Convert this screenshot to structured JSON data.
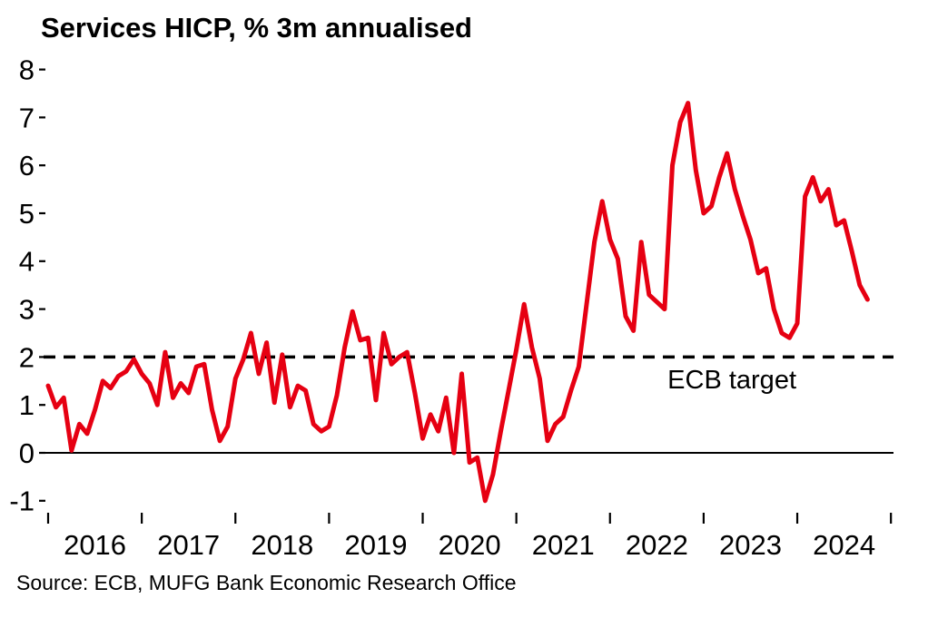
{
  "chart_data": {
    "type": "line",
    "title": "Services HICP, % 3m annualised",
    "frequency": "monthly",
    "x_start": "2016-01",
    "x_end": "2024-10",
    "x_tick_labels": [
      "2016",
      "2017",
      "2018",
      "2019",
      "2020",
      "2021",
      "2022",
      "2023",
      "2024"
    ],
    "y_ticks": [
      8,
      7,
      6,
      5,
      4,
      3,
      2,
      1,
      0,
      -1
    ],
    "ylim": [
      -1.3,
      8.4
    ],
    "grid": false,
    "legend_position": "none",
    "series": [
      {
        "name": "Services HICP, % 3m annualised",
        "color": "#e60012",
        "values": [
          1.4,
          0.95,
          1.15,
          0.05,
          0.6,
          0.4,
          0.9,
          1.5,
          1.35,
          1.6,
          1.7,
          1.95,
          1.65,
          1.45,
          1.0,
          2.1,
          1.15,
          1.45,
          1.25,
          1.8,
          1.85,
          0.9,
          0.25,
          0.55,
          1.55,
          1.95,
          2.5,
          1.65,
          2.3,
          1.05,
          2.05,
          0.95,
          1.4,
          1.3,
          0.6,
          0.45,
          0.55,
          1.2,
          2.2,
          2.95,
          2.35,
          2.4,
          1.1,
          2.5,
          1.85,
          2.0,
          2.1,
          1.25,
          0.3,
          0.8,
          0.45,
          1.15,
          0.0,
          1.65,
          -0.2,
          -0.1,
          -1.0,
          -0.45,
          0.45,
          1.3,
          2.15,
          3.1,
          2.2,
          1.55,
          0.25,
          0.6,
          0.75,
          1.3,
          1.8,
          3.1,
          4.4,
          5.25,
          4.45,
          4.05,
          2.85,
          2.55,
          4.4,
          3.3,
          3.15,
          3.0,
          6.0,
          6.9,
          7.3,
          5.9,
          5.0,
          5.15,
          5.75,
          6.25,
          5.5,
          4.95,
          4.45,
          3.75,
          3.85,
          3.0,
          2.5,
          2.4,
          2.7,
          5.35,
          5.75,
          5.25,
          5.5,
          4.75,
          4.85,
          4.2,
          3.5,
          3.2
        ]
      }
    ],
    "reference_lines": [
      {
        "label": "ECB target",
        "value": 2,
        "style": "dashed",
        "color": "#000000"
      },
      {
        "label": "",
        "value": 0,
        "style": "solid",
        "color": "#000000"
      }
    ]
  },
  "footer": {
    "source_text": "Source: ECB, MUFG Bank Economic Research Office"
  }
}
